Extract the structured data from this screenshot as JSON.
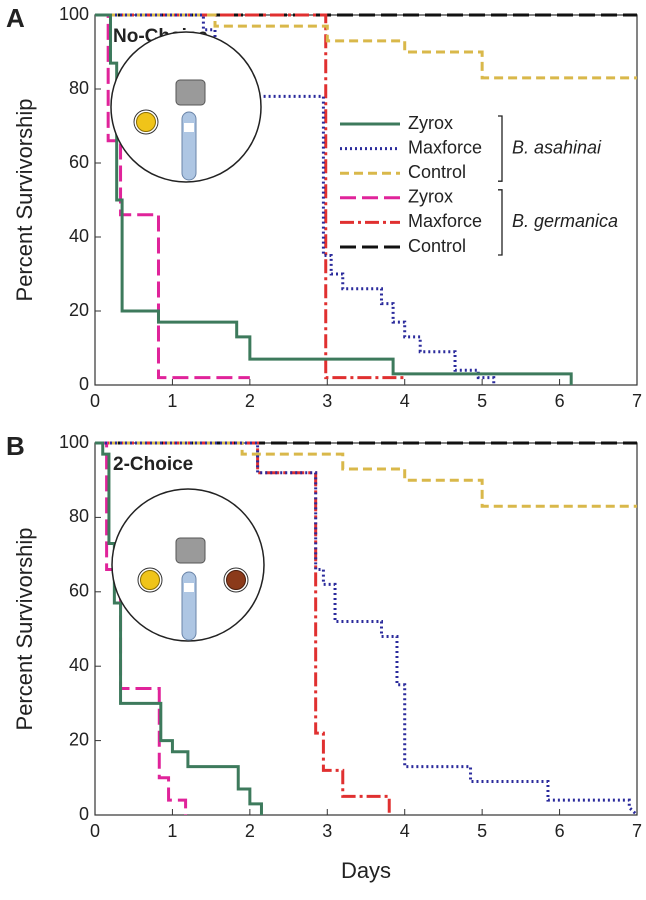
{
  "chart_data": [
    {
      "type": "line",
      "panel": "A",
      "annotation": "No-Choice",
      "ylabel": "Percent Survivorship",
      "xlim": [
        0,
        7
      ],
      "ylim": [
        0,
        100
      ],
      "xticks": [
        0,
        1,
        2,
        3,
        4,
        5,
        6,
        7
      ],
      "yticks": [
        0,
        20,
        40,
        60,
        80,
        100
      ],
      "legend": true,
      "legend_groups": [
        "B. asahinai",
        "B. germanica"
      ],
      "series": [
        {
          "name": "Zyrox",
          "color": "#3d7a5c",
          "dash": "solid",
          "x": [
            0,
            0.2,
            0.2,
            0.28,
            0.28,
            0.35,
            0.35,
            0.82,
            0.82,
            1.83,
            1.83,
            2.0,
            2.0,
            3.85,
            3.85,
            6.15,
            6.15
          ],
          "values": [
            100,
            100,
            87,
            87,
            50,
            50,
            20,
            20,
            17,
            17,
            13,
            13,
            7,
            7,
            3,
            3,
            0
          ]
        },
        {
          "name": "Maxforce",
          "color": "#2b2b9c",
          "dash": "dotted",
          "x": [
            0,
            1.4,
            1.4,
            1.55,
            1.55,
            1.62,
            1.62,
            1.75,
            1.75,
            2.95,
            2.95,
            3.05,
            3.05,
            3.2,
            3.2,
            3.7,
            3.7,
            3.85,
            3.85,
            4.0,
            4.0,
            4.2,
            4.2,
            4.65,
            4.65,
            4.95,
            4.95,
            5.15,
            5.15
          ],
          "values": [
            100,
            100,
            96,
            96,
            91,
            91,
            85,
            85,
            78,
            78,
            35,
            35,
            30,
            30,
            26,
            26,
            22,
            22,
            17,
            17,
            13,
            13,
            9,
            9,
            4,
            4,
            2,
            2,
            0
          ]
        },
        {
          "name": "Control",
          "color": "#d9b84a",
          "dash": "dashed",
          "x": [
            0,
            1.55,
            1.55,
            3.0,
            3.0,
            4.0,
            4.0,
            5.0,
            5.0,
            7
          ],
          "values": [
            100,
            100,
            97,
            97,
            93,
            93,
            90,
            90,
            83,
            83
          ]
        },
        {
          "name": "Zyrox",
          "color": "#e0239a",
          "dash": "longdash",
          "x": [
            0,
            0.17,
            0.17,
            0.33,
            0.33,
            0.82,
            0.82,
            2.0
          ],
          "values": [
            100,
            100,
            66,
            66,
            46,
            46,
            2,
            2
          ]
        },
        {
          "name": "Maxforce",
          "color": "#e03030",
          "dash": "dashdot",
          "x": [
            0,
            2.98,
            2.98,
            4.0
          ],
          "values": [
            100,
            100,
            2,
            2
          ]
        },
        {
          "name": "Control",
          "color": "#111111",
          "dash": "longdash",
          "x": [
            0,
            7
          ],
          "values": [
            100,
            100
          ]
        }
      ]
    },
    {
      "type": "line",
      "panel": "B",
      "annotation": "2-Choice",
      "ylabel": "Percent Survivorship",
      "xlabel": "Days",
      "xlim": [
        0,
        7
      ],
      "ylim": [
        0,
        100
      ],
      "xticks": [
        0,
        1,
        2,
        3,
        4,
        5,
        6,
        7
      ],
      "yticks": [
        0,
        20,
        40,
        60,
        80,
        100
      ],
      "legend": false,
      "series": [
        {
          "color": "#3d7a5c",
          "dash": "solid",
          "x": [
            0,
            0.1,
            0.1,
            0.18,
            0.18,
            0.25,
            0.25,
            0.33,
            0.33,
            0.85,
            0.85,
            1.0,
            1.0,
            1.2,
            1.2,
            1.85,
            1.85,
            2.0,
            2.0,
            2.15,
            2.15
          ],
          "values": [
            100,
            100,
            97,
            97,
            73,
            73,
            57,
            57,
            30,
            30,
            20,
            20,
            17,
            17,
            13,
            13,
            7,
            7,
            3,
            3,
            0
          ]
        },
        {
          "color": "#2b2b9c",
          "dash": "dotted",
          "x": [
            0,
            2.1,
            2.1,
            2.85,
            2.85,
            2.95,
            2.95,
            3.1,
            3.1,
            3.7,
            3.7,
            3.9,
            3.9,
            4.0,
            4.0,
            4.85,
            4.85,
            5.85,
            5.85,
            6.9,
            6.9,
            7
          ],
          "values": [
            100,
            100,
            92,
            92,
            66,
            66,
            62,
            62,
            52,
            52,
            48,
            48,
            35,
            35,
            13,
            13,
            9,
            9,
            4,
            4,
            2,
            0
          ]
        },
        {
          "color": "#d9b84a",
          "dash": "dashed",
          "x": [
            0,
            1.9,
            1.9,
            3.2,
            3.2,
            4.0,
            4.0,
            5.0,
            5.0,
            7
          ],
          "values": [
            100,
            100,
            97,
            97,
            93,
            93,
            90,
            90,
            83,
            83
          ]
        },
        {
          "color": "#e0239a",
          "dash": "longdash",
          "x": [
            0,
            0.15,
            0.15,
            0.33,
            0.33,
            0.83,
            0.83,
            0.95,
            0.95,
            1.17,
            1.17
          ],
          "values": [
            100,
            100,
            66,
            66,
            34,
            34,
            10,
            10,
            4,
            4,
            0
          ]
        },
        {
          "color": "#e03030",
          "dash": "dashdot",
          "x": [
            0,
            2.1,
            2.1,
            2.85,
            2.85,
            2.95,
            2.95,
            3.2,
            3.2,
            3.8,
            3.8
          ],
          "values": [
            100,
            100,
            92,
            92,
            22,
            22,
            12,
            12,
            5,
            5,
            0
          ]
        },
        {
          "color": "#111111",
          "dash": "longdash",
          "x": [
            0,
            7
          ],
          "values": [
            100,
            100
          ]
        }
      ]
    }
  ]
}
